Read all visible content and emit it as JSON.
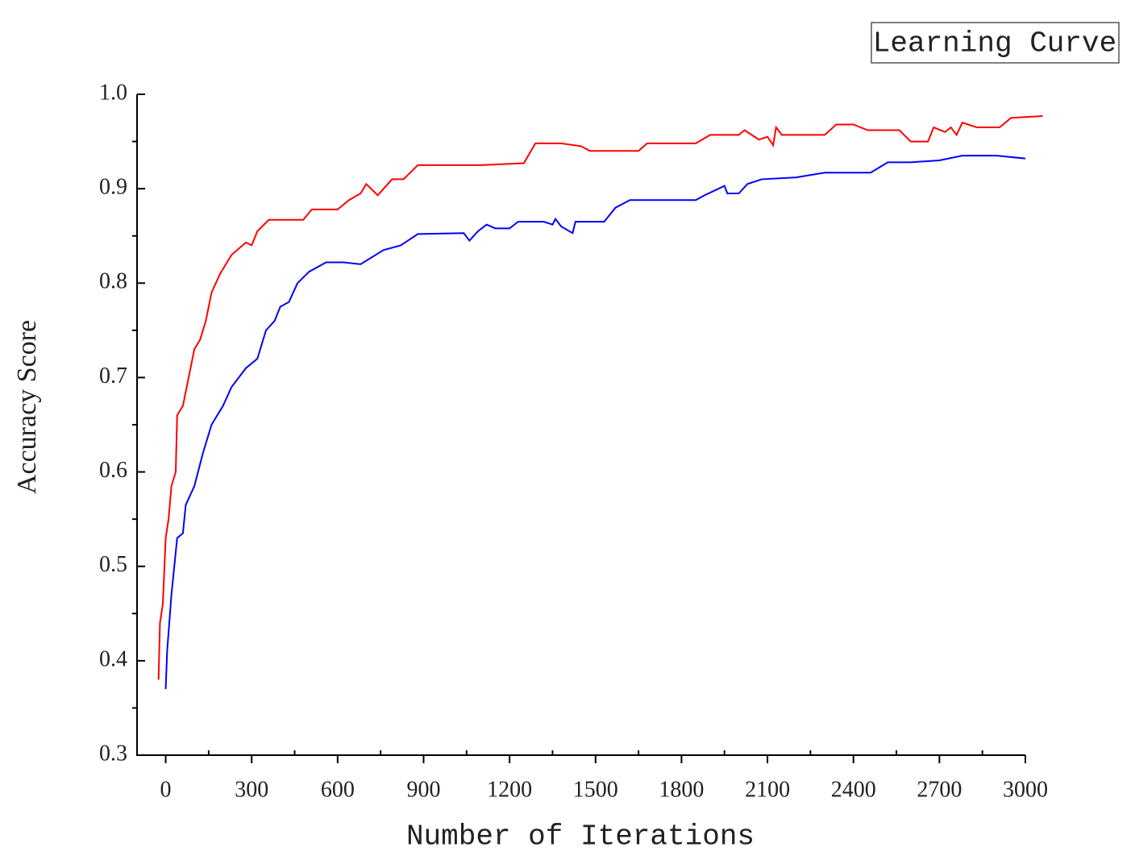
{
  "chart_data": {
    "type": "line",
    "title": "Learning Curve",
    "x_label": "Number of Iterations",
    "y_label": "Accuracy Score",
    "xlim": [
      -100,
      3000
    ],
    "ylim": [
      0.3,
      1.0
    ],
    "xticks": [
      0,
      300,
      600,
      900,
      1200,
      1500,
      1800,
      2100,
      2400,
      2700,
      3000
    ],
    "yticks": [
      0.3,
      0.4,
      0.5,
      0.6,
      0.7,
      0.8,
      0.9,
      {
        "value": 1,
        "label": "1.0"
      }
    ],
    "series": [
      {
        "color": "#ff0000",
        "x": [
          -25,
          -20,
          -10,
          0,
          10,
          20,
          35,
          40,
          60,
          80,
          100,
          120,
          140,
          160,
          190,
          230,
          280,
          300,
          320,
          360,
          480,
          510,
          600,
          640,
          680,
          700,
          740,
          790,
          830,
          880,
          1100,
          1250,
          1290,
          1380,
          1450,
          1480,
          1650,
          1680,
          1850,
          1900,
          2000,
          2020,
          2070,
          2100,
          2120,
          2130,
          2150,
          2300,
          2340,
          2400,
          2450,
          2560,
          2600,
          2660,
          2680,
          2720,
          2740,
          2760,
          2780,
          2830,
          2910,
          2950,
          3060
        ],
        "values": [
          0.38,
          0.44,
          0.46,
          0.53,
          0.55,
          0.585,
          0.6,
          0.66,
          0.67,
          0.7,
          0.73,
          0.74,
          0.76,
          0.79,
          0.81,
          0.83,
          0.843,
          0.84,
          0.855,
          0.867,
          0.867,
          0.878,
          0.878,
          0.888,
          0.895,
          0.905,
          0.893,
          0.91,
          0.91,
          0.925,
          0.925,
          0.927,
          0.948,
          0.948,
          0.945,
          0.94,
          0.94,
          0.948,
          0.948,
          0.957,
          0.957,
          0.962,
          0.952,
          0.955,
          0.946,
          0.965,
          0.957,
          0.957,
          0.968,
          0.968,
          0.962,
          0.962,
          0.95,
          0.95,
          0.965,
          0.96,
          0.965,
          0.957,
          0.97,
          0.965,
          0.965,
          0.975,
          0.977
        ]
      },
      {
        "color": "#0000ff",
        "x": [
          0,
          5,
          20,
          40,
          60,
          70,
          100,
          130,
          160,
          200,
          230,
          280,
          320,
          350,
          380,
          400,
          430,
          460,
          500,
          560,
          620,
          680,
          760,
          820,
          880,
          1040,
          1060,
          1090,
          1120,
          1150,
          1200,
          1230,
          1320,
          1350,
          1360,
          1380,
          1420,
          1430,
          1530,
          1570,
          1620,
          1850,
          1880,
          1950,
          1960,
          2000,
          2030,
          2080,
          2200,
          2300,
          2460,
          2520,
          2600,
          2700,
          2780,
          2900,
          3000
        ],
        "values": [
          0.37,
          0.41,
          0.47,
          0.53,
          0.535,
          0.565,
          0.585,
          0.62,
          0.65,
          0.67,
          0.69,
          0.71,
          0.72,
          0.75,
          0.76,
          0.775,
          0.78,
          0.8,
          0.812,
          0.822,
          0.822,
          0.82,
          0.835,
          0.84,
          0.852,
          0.853,
          0.845,
          0.855,
          0.862,
          0.858,
          0.858,
          0.865,
          0.865,
          0.862,
          0.868,
          0.86,
          0.853,
          0.865,
          0.865,
          0.88,
          0.888,
          0.888,
          0.893,
          0.903,
          0.895,
          0.895,
          0.905,
          0.91,
          0.912,
          0.917,
          0.917,
          0.928,
          0.928,
          0.93,
          0.935,
          0.935,
          0.932
        ]
      }
    ]
  }
}
